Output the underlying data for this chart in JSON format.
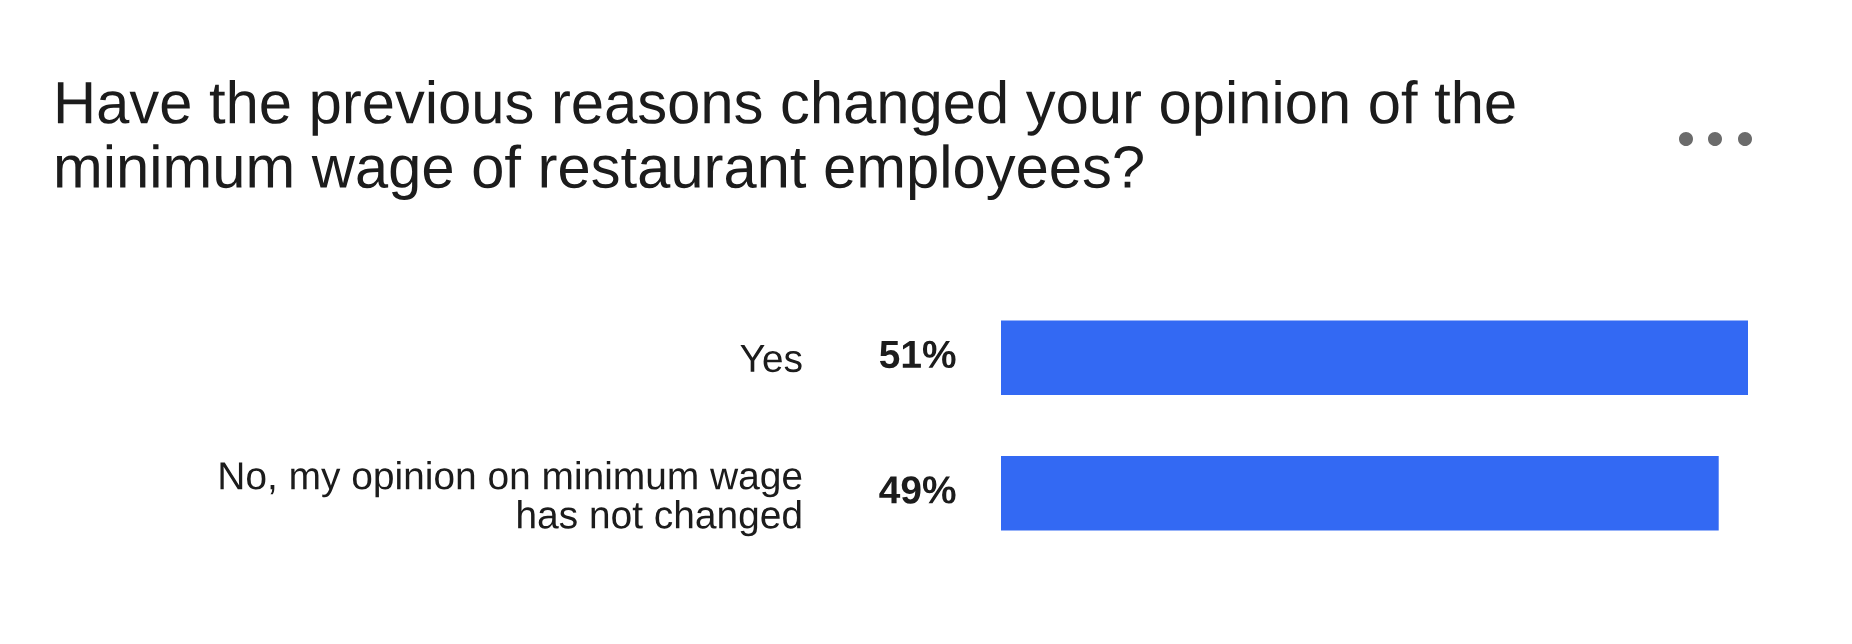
{
  "chart_data": {
    "type": "bar",
    "orientation": "horizontal",
    "title": "Have the previous reasons changed your opinion of the\nminimum wage of restaurant employees?",
    "categories": [
      "Yes",
      "No, my opinion on minimum wage\nhas not changed"
    ],
    "values": [
      51,
      49
    ],
    "color": "#3369f3",
    "value_labels": [
      "51%",
      "49%"
    ],
    "tick_labels": "y"
  }
}
